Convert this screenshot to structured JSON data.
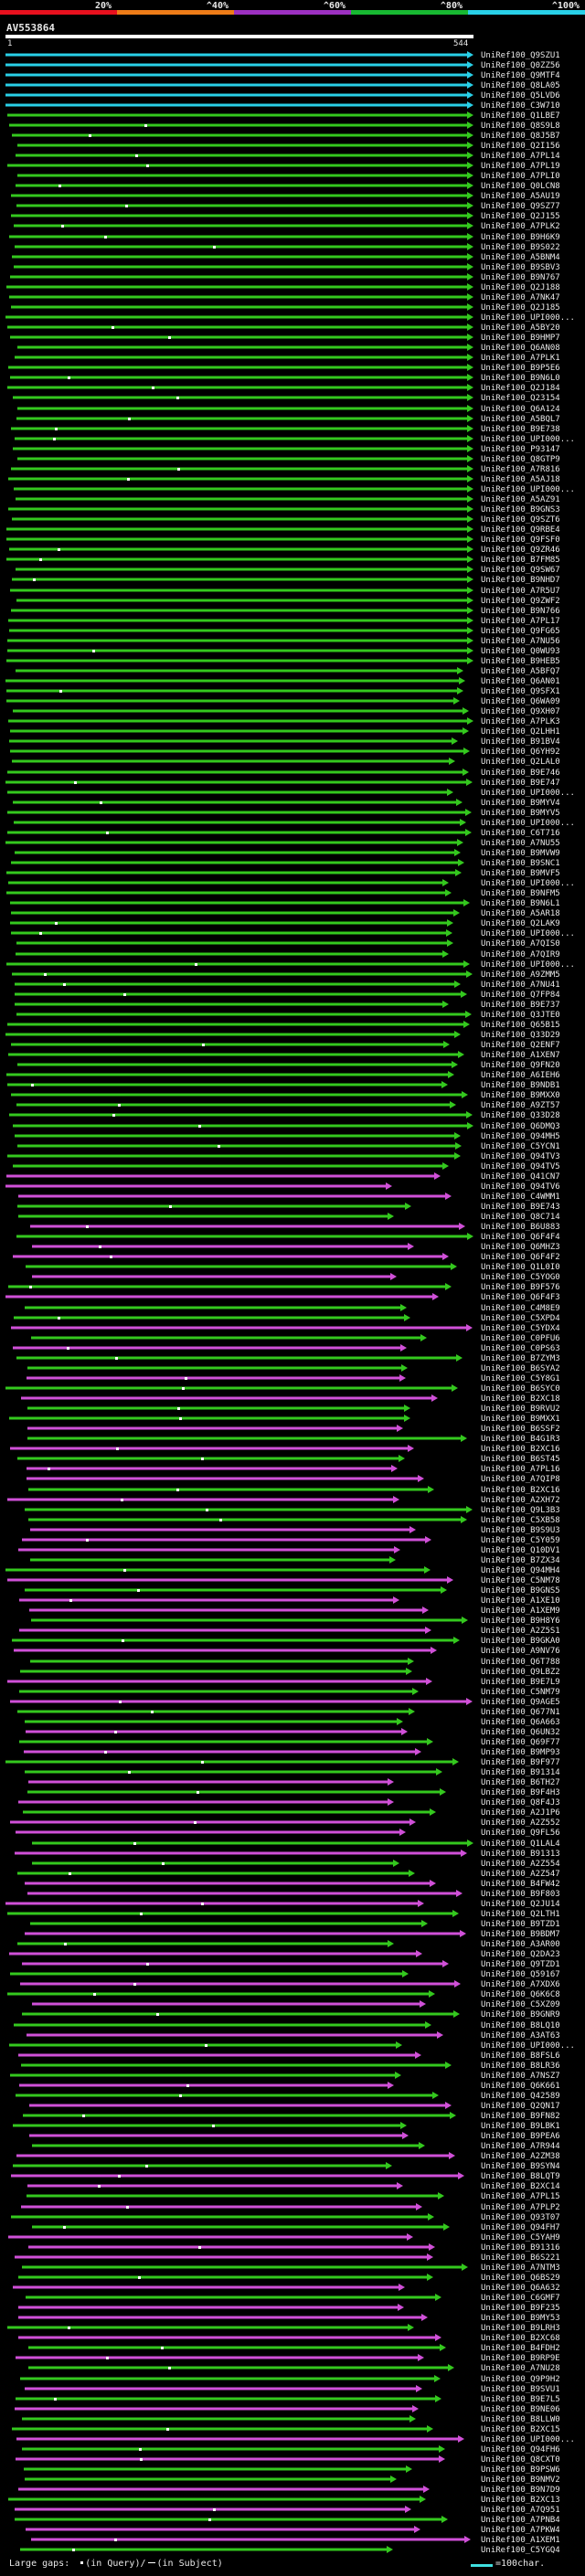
{
  "query": {
    "name": "AV553864",
    "start": "1",
    "end": "544"
  },
  "legend": {
    "gaps_label": "Large gaps:",
    "query_gap_label": "(in Query)",
    "separator": "/",
    "subject_gap_label": "(in Subject)",
    "scale_label": "=100char."
  },
  "colors": {
    "bg": "#000000",
    "cyan": "#29d0e8",
    "green": "#34c81e",
    "magenta": "#d050d8",
    "label": "#e8e8e8",
    "scale": "#40e0e0"
  },
  "chart_data": {
    "type": "alignment-overview",
    "identity_scale": {
      "ticks": [
        "20%",
        "^40%",
        "^60%",
        "^80%",
        "^100%"
      ],
      "colors": [
        "#e8101e",
        "#ee7c18",
        "#9c30c0",
        "#18b832",
        "#29d0e8"
      ]
    },
    "query_length": 544,
    "hits": [
      "UniRef100_Q9SZU1",
      "UniRef100_Q0ZZ56",
      "UniRef100_Q9MTF4",
      "UniRef100_Q8LA05",
      "UniRef100_Q5LVD6",
      "UniRef100_C3W710",
      "UniRef100_Q1LBE7",
      "UniRef100_Q8S9L8",
      "UniRef100_Q8J5B7",
      "UniRef100_Q2I156",
      "UniRef100_A7PL14",
      "UniRef100_A7PL19",
      "UniRef100_A7PLI0",
      "UniRef100_Q0LCN8",
      "UniRef100_A5AU19",
      "UniRef100_Q9SZ77",
      "UniRef100_Q2J155",
      "UniRef100_A7PLK2",
      "UniRef100_B9H6K9",
      "UniRef100_B9S022",
      "UniRef100_A5BNM4",
      "UniRef100_B9SBV3",
      "UniRef100_B9N767",
      "UniRef100_Q2J188",
      "UniRef100_A7NK47",
      "UniRef100_Q2J185",
      "UniRef100_UPI000...",
      "UniRef100_A5BY20",
      "UniRef100_B9HMP7",
      "UniRef100_Q6AN08",
      "UniRef100_A7PLK1",
      "UniRef100_B9P5E6",
      "UniRef100_B9N6L0",
      "UniRef100_Q2J184",
      "UniRef100_Q23154",
      "UniRef100_Q6A124",
      "UniRef100_A5BQL7",
      "UniRef100_B9E738",
      "UniRef100_UPI000...",
      "UniRef100_P93147",
      "UniRef100_Q8GTP9",
      "UniRef100_A7R816",
      "UniRef100_A5AJ18",
      "UniRef100_UPI000...",
      "UniRef100_A5AZ91",
      "UniRef100_B9GNS3",
      "UniRef100_Q9SZT6",
      "UniRef100_Q9RBE4",
      "UniRef100_Q9FSF0",
      "UniRef100_Q9ZR46",
      "UniRef100_B7FM85",
      "UniRef100_Q9SW67",
      "UniRef100_B9NHD7",
      "UniRef100_A7R5U7",
      "UniRef100_Q9ZWF2",
      "UniRef100_B9N766",
      "UniRef100_A7PL17",
      "UniRef100_Q9FG65",
      "UniRef100_A7NU56",
      "UniRef100_Q0WU93",
      "UniRef100_B9HEB5",
      "UniRef100_A5BFQ7",
      "UniRef100_Q6AN01",
      "UniRef100_Q9SFX1",
      "UniRef100_Q6WA09",
      "UniRef100_Q9XH07",
      "UniRef100_A7PLK3",
      "UniRef100_Q2LHH1",
      "UniRef100_B91BV4",
      "UniRef100_Q6YH92",
      "UniRef100_Q2LAL0",
      "UniRef100_B9E746",
      "UniRef100_B9E747",
      "UniRef100_UPI000...",
      "UniRef100_B9MYV4",
      "UniRef100_B9MYV5",
      "UniRef100_UPI000...",
      "UniRef100_C6T716",
      "UniRef100_A7NU55",
      "UniRef100_B9MVW9",
      "UniRef100_B9SNC1",
      "UniRef100_B9MVF5",
      "UniRef100_UPI000...",
      "UniRef100_B9NFM5",
      "UniRef100_B9N6L1",
      "UniRef100_A5AR18",
      "UniRef100_Q2LAK9",
      "UniRef100_UPI000...",
      "UniRef100_A7QIS0",
      "UniRef100_A7QIR9",
      "UniRef100_UPI000...",
      "UniRef100_A9ZMM5",
      "UniRef100_A7NU41",
      "UniRef100_Q7FP84",
      "UniRef100_B9E737",
      "UniRef100_Q3JTE0",
      "UniRef100_Q65B15",
      "UniRef100_Q33D29",
      "UniRef100_Q2ENF7",
      "UniRef100_A1XEN7",
      "UniRef100_Q9FN20",
      "UniRef100_A6IEH6",
      "UniRef100_B9NDB1",
      "UniRef100_B9MXX0",
      "UniRef100_A9ZT57",
      "UniRef100_Q33D28",
      "UniRef100_Q6DMQ3",
      "UniRef100_Q94MH5",
      "UniRef100_C5YCN1",
      "UniRef100_Q94TV3",
      "UniRef100_Q94TV5",
      "UniRef100_Q41CN7",
      "UniRef100_Q94TV6",
      "UniRef100_C4WMM1",
      "UniRef100_B9E743",
      "UniRef100_Q8C714",
      "UniRef100_B6U883",
      "UniRef100_Q6F4F4",
      "UniRef100_Q6MHZ3",
      "UniRef100_Q6F4F2",
      "UniRef100_Q1L0I0",
      "UniRef100_C5YOG0",
      "UniRef100_B9F576",
      "UniRef100_Q6F4F3",
      "UniRef100_C4M8E9",
      "UniRef100_C5XPD4",
      "UniRef100_C5YDX4",
      "UniRef100_C0PFU6",
      "UniRef100_C0PS63",
      "UniRef100_B7ZYM3",
      "UniRef100_B6SYA2",
      "UniRef100_C5Y8G1",
      "UniRef100_B6SYC0",
      "UniRef100_B2XC18",
      "UniRef100_B9RVU2",
      "UniRef100_B9MXX1",
      "UniRef100_B6SSF2",
      "UniRef100_B4G1R3",
      "UniRef100_B2XC16",
      "UniRef100_B6ST45",
      "UniRef100_A7PL16",
      "UniRef100_A7QIP8",
      "UniRef100_B2XC16",
      "UniRef100_A2XH72",
      "UniRef100_Q9L3B3",
      "UniRef100_C5XB58",
      "UniRef100_B9S9U3",
      "UniRef100_C5Y059",
      "UniRef100_Q10DV1",
      "UniRef100_B7ZX34",
      "UniRef100_Q94MH4",
      "UniRef100_C5NM78",
      "UniRef100_B9GNS5",
      "UniRef100_A1XE10",
      "UniRef100_A1XEM9",
      "UniRef100_B9H8Y6",
      "UniRef100_A2Z5S1",
      "UniRef100_B9GKA0",
      "UniRef100_A9NV76",
      "UniRef100_Q6T788",
      "UniRef100_Q9LBZ2",
      "UniRef100_B9E7L9",
      "UniRef100_C5NM79",
      "UniRef100_Q9AGE5",
      "UniRef100_Q677N1",
      "UniRef100_Q6A663",
      "UniRef100_Q6UN32",
      "UniRef100_Q69F77",
      "UniRef100_B9MP93",
      "UniRef100_B9F977",
      "UniRef100_B91314",
      "UniRef100_B6TH27",
      "UniRef100_B9F4H3",
      "UniRef100_Q8F4J3",
      "UniRef100_A2J1P6",
      "UniRef100_A2Z552",
      "UniRef100_Q9FL56",
      "UniRef100_Q1LAL4",
      "UniRef100_B91313",
      "UniRef100_A2Z554",
      "UniRef100_A2Z547",
      "UniRef100_B4FW42",
      "UniRef100_B9F803",
      "UniRef100_Q2JU14",
      "UniRef100_Q2LTH1",
      "UniRef100_B9TZD1",
      "UniRef100_B9BDM7",
      "UniRef100_A3AR00",
      "UniRef100_Q2DA23",
      "UniRef100_Q9TZD1",
      "UniRef100_Q59167",
      "UniRef100_A7XDX6",
      "UniRef100_Q6K6C8",
      "UniRef100_C5XZ09",
      "UniRef100_B9GNR9",
      "UniRef100_B8LQ10",
      "UniRef100_A3AT63",
      "UniRef100_UPI000...",
      "UniRef100_B8FSL6",
      "UniRef100_B8LR36",
      "UniRef100_A7NSZ7",
      "UniRef100_Q6K661",
      "UniRef100_Q42589",
      "UniRef100_Q2QN17",
      "UniRef100_B9FN82",
      "UniRef100_B9LBK1",
      "UniRef100_B9PEA6",
      "UniRef100_A7R944",
      "UniRef100_A2ZM38",
      "UniRef100_B9SYN4",
      "UniRef100_B8LQT9",
      "UniRef100_B2XC14",
      "UniRef100_A7PL15",
      "UniRef100_A7PLP2",
      "UniRef100_Q93T07",
      "UniRef100_Q94FH7",
      "UniRef100_C5YAH9",
      "UniRef100_B91316",
      "UniRef100_B6S221",
      "UniRef100_A7NTM3",
      "UniRef100_Q6BS29",
      "UniRef100_Q6A632",
      "UniRef100_C6GMF7",
      "UniRef100_B9F235",
      "UniRef100_B9MY53",
      "UniRef100_B9LRH3",
      "UniRef100_B2XC68",
      "UniRef100_B4FDH2",
      "UniRef100_B9RP9E",
      "UniRef100_A7NU28",
      "UniRef100_Q9P9H2",
      "UniRef100_B9SVU1",
      "UniRef100_B9E7L5",
      "UniRef100_B9NE06",
      "UniRef100_B8LLW0",
      "UniRef100_B2XC15",
      "UniRef100_UPI000...",
      "UniRef100_Q94FH6",
      "UniRef100_Q8CXT0",
      "UniRef100_B9PSW6",
      "UniRef100_B9NMV2",
      "UniRef100_B9N7D9",
      "UniRef100_B2XC13",
      "UniRef100_A7Q951",
      "UniRef100_A7PNB4",
      "UniRef100_A7PKW4",
      "UniRef100_A1XEM1",
      "UniRef100_C5YGQ4"
    ]
  }
}
